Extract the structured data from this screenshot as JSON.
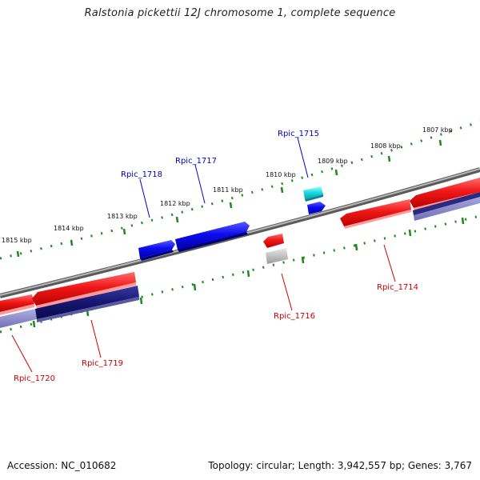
{
  "title": "Ralstonia pickettii 12J chromosome 1, complete sequence",
  "footer": {
    "accession": "Accession: NC_010682",
    "summary": "Topology: circular; Length: 3,942,557 bp; Genes: 3,767"
  },
  "colors": {
    "forward_gene": "#e81010",
    "reverse_gene": "#0a0ae6",
    "cds_forward": "#f4a0a0",
    "cds_reverse": "#1a1a80",
    "rna_gene": "#18d8e0",
    "pseudo_gene": "#a8a8a8",
    "backbone": "#8a8a8a",
    "tick": "#1a8a1a",
    "label_forward": "#cc0000",
    "label_reverse": "#0000cc"
  },
  "scale_labels": [
    "1815 kbp",
    "1814 kbp",
    "1813 kbp",
    "1812 kbp",
    "1811 kbp",
    "1810 kbp",
    "1809 kbp",
    "1808 kbp",
    "1807 kbp"
  ],
  "genes": [
    {
      "id": "Rpic_1714",
      "label": "Rpic_1714",
      "strand": "reverse-label",
      "color_key": "label_forward"
    },
    {
      "id": "Rpic_1715",
      "label": "Rpic_1715",
      "color_key": "label_reverse"
    },
    {
      "id": "Rpic_1716",
      "label": "Rpic_1716",
      "color_key": "label_forward"
    },
    {
      "id": "Rpic_1717",
      "label": "Rpic_1717",
      "color_key": "label_reverse"
    },
    {
      "id": "Rpic_1718",
      "label": "Rpic_1718",
      "color_key": "label_reverse"
    },
    {
      "id": "Rpic_1719",
      "label": "Rpic_1719",
      "color_key": "label_forward"
    },
    {
      "id": "Rpic_1720",
      "label": "Rpic_1720",
      "color_key": "label_forward"
    }
  ]
}
